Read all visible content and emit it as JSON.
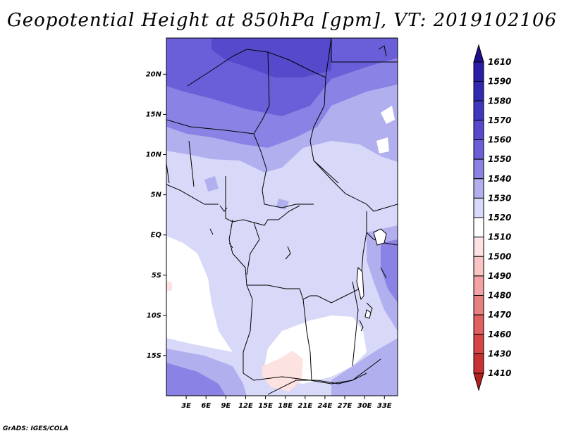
{
  "title": "Geopotential Height at 850hPa [gpm], VT: 2019102106",
  "footer": "GrADS: IGES/COLA",
  "map": {
    "lon_range": [
      0,
      35
    ],
    "lat_range": [
      -20,
      24.5
    ],
    "lat_labels": [
      {
        "lat": 20,
        "label": "20N"
      },
      {
        "lat": 15,
        "label": "15N"
      },
      {
        "lat": 10,
        "label": "10N"
      },
      {
        "lat": 5,
        "label": "5N"
      },
      {
        "lat": 0,
        "label": "EQ"
      },
      {
        "lat": -5,
        "label": "5S"
      },
      {
        "lat": -10,
        "label": "10S"
      },
      {
        "lat": -15,
        "label": "15S"
      }
    ],
    "lon_labels": [
      {
        "lon": 3,
        "label": "3E"
      },
      {
        "lon": 6,
        "label": "6E"
      },
      {
        "lon": 9,
        "label": "9E"
      },
      {
        "lon": 12,
        "label": "12E"
      },
      {
        "lon": 15,
        "label": "15E"
      },
      {
        "lon": 18,
        "label": "18E"
      },
      {
        "lon": 21,
        "label": "21E"
      },
      {
        "lon": 24,
        "label": "24E"
      },
      {
        "lon": 27,
        "label": "27E"
      },
      {
        "lon": 30,
        "label": "30E"
      },
      {
        "lon": 33,
        "label": "33E"
      }
    ]
  },
  "colorbar": {
    "levels": [
      {
        "label": "1610",
        "color": "#1e0f8c"
      },
      {
        "label": "1590",
        "color": "#2a1ea8"
      },
      {
        "label": "1580",
        "color": "#3328b4"
      },
      {
        "label": "1570",
        "color": "#4037c0"
      },
      {
        "label": "1560",
        "color": "#5649cc"
      },
      {
        "label": "1550",
        "color": "#6a5fd8"
      },
      {
        "label": "1540",
        "color": "#8a82e4"
      },
      {
        "label": "1530",
        "color": "#b2afef"
      },
      {
        "label": "1520",
        "color": "#d8d8f8"
      },
      {
        "label": "1510",
        "color": "#ffffff"
      },
      {
        "label": "1500",
        "color": "#fde2e2"
      },
      {
        "label": "1490",
        "color": "#f8c4c4"
      },
      {
        "label": "1480",
        "color": "#f2a2a2"
      },
      {
        "label": "1470",
        "color": "#e88080"
      },
      {
        "label": "1460",
        "color": "#e06060"
      },
      {
        "label": "1430",
        "color": "#d64444"
      },
      {
        "label": "1410",
        "color": "#c83232"
      }
    ],
    "bottom_color": "#b42020"
  }
}
